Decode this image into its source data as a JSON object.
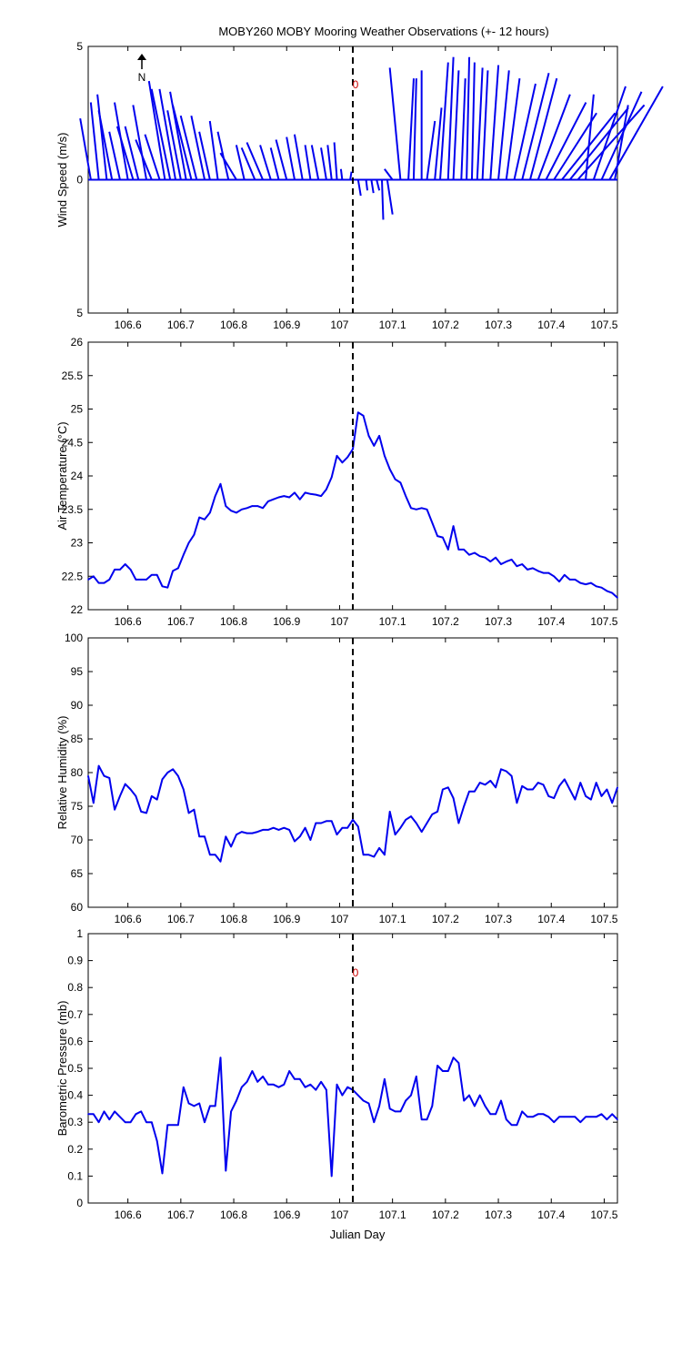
{
  "figure": {
    "title": "MOBY260 MOBY Mooring Weather Observations (+- 12 hours)",
    "xlabel": "Julian Day",
    "line_color": "#0000ee",
    "marker_color": "#cc0000",
    "north_label": "N",
    "vline_x": 107.025,
    "x_range": [
      106.525,
      107.525
    ],
    "x_ticks": [
      "106.6",
      "106.7",
      "106.8",
      "106.9",
      "107",
      "107.1",
      "107.2",
      "107.3",
      "107.4",
      "107.5"
    ]
  },
  "chart_data": [
    {
      "type": "vector",
      "ylabel": "Wind Speed (m/s)",
      "ylim": [
        -5,
        5
      ],
      "y_tick_labels": [
        "5",
        "0",
        "5"
      ],
      "marker_label": "0",
      "x": [
        106.53,
        106.545,
        106.56,
        106.57,
        106.585,
        106.6,
        106.61,
        106.62,
        106.635,
        106.645,
        106.66,
        106.67,
        106.68,
        106.69,
        106.7,
        106.71,
        106.72,
        106.73,
        106.745,
        106.755,
        106.77,
        106.79,
        106.805,
        106.82,
        106.84,
        106.855,
        106.87,
        106.885,
        106.9,
        106.915,
        106.93,
        106.945,
        106.96,
        106.975,
        106.985,
        106.995,
        107.005,
        107.02,
        107.035,
        107.05,
        107.06,
        107.07,
        107.08,
        107.09,
        107.1,
        107.115,
        107.13,
        107.14,
        107.155,
        107.165,
        107.18,
        107.19,
        107.205,
        107.215,
        107.23,
        107.24,
        107.25,
        107.26,
        107.27,
        107.285,
        107.3,
        107.315,
        107.33,
        107.345,
        107.36,
        107.375,
        107.39,
        107.405,
        107.42,
        107.435,
        107.45,
        107.465,
        107.48,
        107.495,
        107.51,
        107.52
      ],
      "u": [
        -0.4,
        -0.3,
        -0.35,
        -0.5,
        -0.4,
        -0.5,
        -0.6,
        -0.5,
        -0.5,
        -0.6,
        -0.55,
        -0.6,
        -0.7,
        -0.6,
        -0.5,
        -0.6,
        -0.7,
        -0.6,
        -0.5,
        -0.4,
        -0.3,
        -0.4,
        -0.6,
        -0.3,
        -0.5,
        -0.6,
        -0.4,
        -0.3,
        -0.4,
        -0.3,
        -0.3,
        -0.2,
        -0.25,
        -0.2,
        -0.15,
        -0.1,
        -0.05,
        0.05,
        0.1,
        0.05,
        0.08,
        0.1,
        0.05,
        0.2,
        -0.3,
        -0.4,
        0.2,
        0.1,
        0.0,
        0.3,
        0.25,
        0.3,
        0.2,
        0.2,
        0.15,
        0.1,
        0.1,
        0.2,
        0.2,
        0.3,
        0.4,
        0.5,
        0.8,
        1.0,
        1.0,
        1.2,
        1.5,
        1.6,
        2.0,
        2.2,
        2.5,
        0.3,
        1.2,
        1.5,
        2.0,
        0.5
      ],
      "v": [
        2.3,
        2.9,
        3.2,
        2.6,
        1.8,
        2.9,
        2.0,
        2.0,
        2.8,
        1.5,
        1.7,
        3.7,
        3.4,
        3.4,
        2.6,
        3.3,
        2.8,
        2.4,
        2.4,
        1.8,
        2.2,
        1.8,
        1.0,
        1.3,
        1.2,
        1.4,
        1.3,
        1.2,
        1.5,
        1.6,
        1.7,
        1.3,
        1.3,
        1.2,
        1.3,
        1.4,
        0.4,
        0.3,
        -0.6,
        -0.4,
        -0.5,
        -0.4,
        -1.5,
        -1.3,
        0.4,
        4.2,
        3.8,
        3.8,
        4.1,
        2.2,
        2.7,
        4.4,
        4.6,
        4.1,
        3.8,
        4.6,
        4.4,
        4.2,
        4.1,
        4.3,
        4.1,
        3.8,
        3.6,
        4.0,
        3.8,
        3.2,
        2.9,
        2.5,
        2.5,
        2.7,
        2.8,
        3.2,
        3.5,
        3.3,
        3.5,
        2.8
      ]
    },
    {
      "type": "line",
      "ylabel": "Air Temperature (°C)",
      "ylim": [
        22,
        26
      ],
      "y_tick_labels": [
        "22",
        "22.5",
        "23",
        "23.5",
        "24",
        "24.5",
        "25",
        "25.5",
        "26"
      ],
      "x": [
        106.525,
        106.535,
        106.545,
        106.555,
        106.565,
        106.575,
        106.585,
        106.595,
        106.605,
        106.615,
        106.625,
        106.635,
        106.645,
        106.655,
        106.665,
        106.675,
        106.685,
        106.695,
        106.705,
        106.715,
        106.725,
        106.735,
        106.745,
        106.755,
        106.765,
        106.775,
        106.785,
        106.795,
        106.805,
        106.815,
        106.825,
        106.835,
        106.845,
        106.855,
        106.865,
        106.875,
        106.885,
        106.895,
        106.905,
        106.915,
        106.925,
        106.935,
        106.945,
        106.955,
        106.965,
        106.975,
        106.985,
        106.995,
        107.005,
        107.015,
        107.025,
        107.035,
        107.045,
        107.055,
        107.065,
        107.075,
        107.085,
        107.095,
        107.105,
        107.115,
        107.125,
        107.135,
        107.145,
        107.155,
        107.165,
        107.175,
        107.185,
        107.195,
        107.205,
        107.215,
        107.225,
        107.235,
        107.245,
        107.255,
        107.265,
        107.275,
        107.285,
        107.295,
        107.305,
        107.315,
        107.325,
        107.335,
        107.345,
        107.355,
        107.365,
        107.375,
        107.385,
        107.395,
        107.405,
        107.415,
        107.425,
        107.435,
        107.445,
        107.455,
        107.465,
        107.475,
        107.485,
        107.495,
        107.505,
        107.515,
        107.525
      ],
      "y": [
        22.45,
        22.5,
        22.4,
        22.4,
        22.45,
        22.6,
        22.6,
        22.68,
        22.6,
        22.45,
        22.45,
        22.45,
        22.52,
        22.52,
        22.35,
        22.33,
        22.58,
        22.62,
        22.82,
        23.0,
        23.12,
        23.38,
        23.35,
        23.45,
        23.7,
        23.88,
        23.55,
        23.48,
        23.45,
        23.5,
        23.52,
        23.55,
        23.55,
        23.52,
        23.62,
        23.65,
        23.68,
        23.7,
        23.68,
        23.75,
        23.65,
        23.75,
        23.73,
        23.72,
        23.7,
        23.8,
        23.98,
        24.3,
        24.2,
        24.28,
        24.4,
        24.95,
        24.9,
        24.6,
        24.45,
        24.6,
        24.3,
        24.1,
        23.95,
        23.9,
        23.7,
        23.52,
        23.5,
        23.52,
        23.5,
        23.3,
        23.1,
        23.08,
        22.9,
        23.25,
        22.9,
        22.9,
        22.82,
        22.85,
        22.8,
        22.78,
        22.72,
        22.78,
        22.68,
        22.72,
        22.75,
        22.65,
        22.68,
        22.6,
        22.62,
        22.58,
        22.55,
        22.55,
        22.5,
        22.42,
        22.52,
        22.45,
        22.45,
        22.4,
        22.38,
        22.4,
        22.35,
        22.33,
        22.28,
        22.25,
        22.18
      ]
    },
    {
      "type": "line",
      "ylabel": "Relative Humidity (%)",
      "ylim": [
        60,
        100
      ],
      "y_tick_labels": [
        "60",
        "65",
        "70",
        "75",
        "80",
        "85",
        "90",
        "95",
        "100"
      ],
      "x": [
        106.525,
        106.535,
        106.545,
        106.555,
        106.565,
        106.575,
        106.585,
        106.595,
        106.605,
        106.615,
        106.625,
        106.635,
        106.645,
        106.655,
        106.665,
        106.675,
        106.685,
        106.695,
        106.705,
        106.715,
        106.725,
        106.735,
        106.745,
        106.755,
        106.765,
        106.775,
        106.785,
        106.795,
        106.805,
        106.815,
        106.825,
        106.835,
        106.845,
        106.855,
        106.865,
        106.875,
        106.885,
        106.895,
        106.905,
        106.915,
        106.925,
        106.935,
        106.945,
        106.955,
        106.965,
        106.975,
        106.985,
        106.995,
        107.005,
        107.015,
        107.025,
        107.035,
        107.045,
        107.055,
        107.065,
        107.075,
        107.085,
        107.095,
        107.105,
        107.115,
        107.125,
        107.135,
        107.145,
        107.155,
        107.165,
        107.175,
        107.185,
        107.195,
        107.205,
        107.215,
        107.225,
        107.235,
        107.245,
        107.255,
        107.265,
        107.275,
        107.285,
        107.295,
        107.305,
        107.315,
        107.325,
        107.335,
        107.345,
        107.355,
        107.365,
        107.375,
        107.385,
        107.395,
        107.405,
        107.415,
        107.425,
        107.435,
        107.445,
        107.455,
        107.465,
        107.475,
        107.485,
        107.495,
        107.505,
        107.515,
        107.525
      ],
      "y": [
        79.5,
        75.5,
        81.0,
        79.5,
        79.2,
        74.5,
        76.5,
        78.3,
        77.5,
        76.5,
        74.2,
        74.0,
        76.5,
        76.0,
        79.0,
        80.0,
        80.5,
        79.5,
        77.5,
        74.0,
        74.5,
        70.5,
        70.5,
        67.8,
        67.8,
        66.8,
        70.5,
        69.0,
        70.8,
        71.2,
        71.0,
        71.0,
        71.2,
        71.5,
        71.5,
        71.8,
        71.5,
        71.8,
        71.5,
        69.8,
        70.5,
        71.8,
        70.0,
        72.5,
        72.5,
        72.8,
        72.8,
        70.8,
        71.8,
        71.8,
        73.0,
        72.0,
        67.8,
        67.8,
        67.5,
        68.8,
        67.8,
        74.2,
        70.8,
        71.8,
        73.0,
        73.5,
        72.5,
        71.2,
        72.5,
        73.8,
        74.2,
        77.5,
        77.8,
        76.2,
        72.5,
        75.0,
        77.2,
        77.2,
        78.5,
        78.2,
        78.8,
        77.8,
        80.5,
        80.2,
        79.5,
        75.5,
        78.0,
        77.5,
        77.5,
        78.5,
        78.2,
        76.5,
        76.2,
        78.0,
        79.0,
        77.5,
        76.0,
        78.5,
        76.5,
        76.0,
        78.5,
        76.5,
        77.5,
        75.5,
        77.8
      ]
    },
    {
      "type": "line",
      "ylabel": "Barometric Pressure (mb)",
      "ylim": [
        0,
        1
      ],
      "y_tick_labels": [
        "0",
        "0.1",
        "0.2",
        "0.3",
        "0.4",
        "0.5",
        "0.6",
        "0.7",
        "0.8",
        "0.9",
        "1"
      ],
      "marker_label": "0",
      "x": [
        106.525,
        106.535,
        106.545,
        106.555,
        106.565,
        106.575,
        106.585,
        106.595,
        106.605,
        106.615,
        106.625,
        106.635,
        106.645,
        106.655,
        106.665,
        106.675,
        106.685,
        106.695,
        106.705,
        106.715,
        106.725,
        106.735,
        106.745,
        106.755,
        106.765,
        106.775,
        106.785,
        106.795,
        106.805,
        106.815,
        106.825,
        106.835,
        106.845,
        106.855,
        106.865,
        106.875,
        106.885,
        106.895,
        106.905,
        106.915,
        106.925,
        106.935,
        106.945,
        106.955,
        106.965,
        106.975,
        106.985,
        106.995,
        107.005,
        107.015,
        107.025,
        107.035,
        107.045,
        107.055,
        107.065,
        107.075,
        107.085,
        107.095,
        107.105,
        107.115,
        107.125,
        107.135,
        107.145,
        107.155,
        107.165,
        107.175,
        107.185,
        107.195,
        107.205,
        107.215,
        107.225,
        107.235,
        107.245,
        107.255,
        107.265,
        107.275,
        107.285,
        107.295,
        107.305,
        107.315,
        107.325,
        107.335,
        107.345,
        107.355,
        107.365,
        107.375,
        107.385,
        107.395,
        107.405,
        107.415,
        107.425,
        107.435,
        107.445,
        107.455,
        107.465,
        107.475,
        107.485,
        107.495,
        107.505,
        107.515,
        107.525
      ],
      "y": [
        0.33,
        0.33,
        0.3,
        0.34,
        0.31,
        0.34,
        0.32,
        0.3,
        0.3,
        0.33,
        0.34,
        0.3,
        0.3,
        0.23,
        0.11,
        0.29,
        0.29,
        0.29,
        0.43,
        0.37,
        0.36,
        0.37,
        0.3,
        0.36,
        0.36,
        0.54,
        0.12,
        0.34,
        0.38,
        0.43,
        0.45,
        0.49,
        0.45,
        0.47,
        0.44,
        0.44,
        0.43,
        0.44,
        0.49,
        0.46,
        0.46,
        0.43,
        0.44,
        0.42,
        0.45,
        0.42,
        0.1,
        0.44,
        0.4,
        0.43,
        0.42,
        0.4,
        0.38,
        0.37,
        0.3,
        0.36,
        0.46,
        0.35,
        0.34,
        0.34,
        0.38,
        0.4,
        0.47,
        0.31,
        0.31,
        0.36,
        0.51,
        0.49,
        0.49,
        0.54,
        0.52,
        0.38,
        0.4,
        0.36,
        0.4,
        0.36,
        0.33,
        0.33,
        0.38,
        0.31,
        0.29,
        0.29,
        0.34,
        0.32,
        0.32,
        0.33,
        0.33,
        0.32,
        0.3,
        0.32,
        0.32,
        0.32,
        0.32,
        0.3,
        0.32,
        0.32,
        0.32,
        0.33,
        0.31,
        0.33,
        0.31
      ]
    }
  ]
}
